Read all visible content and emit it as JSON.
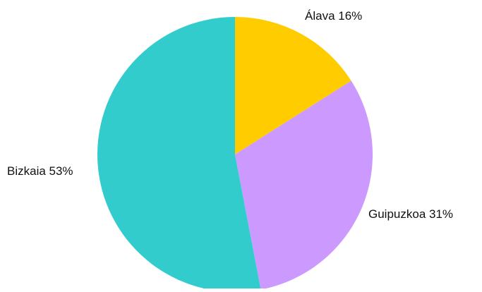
{
  "chart_data": {
    "type": "pie",
    "title": "",
    "slices": [
      {
        "label": "Álava",
        "value": 16,
        "value_label": "16%",
        "color": "#ffcc00"
      },
      {
        "label": "Guipuzkoa",
        "value": 31,
        "value_label": "31%",
        "color": "#cc99ff"
      },
      {
        "label": "Bizkaia",
        "value": 53,
        "value_label": "53%",
        "color": "#33cccc"
      }
    ],
    "legend": "none",
    "start_angle": "top",
    "direction": "clockwise",
    "labels_position": "outside"
  }
}
